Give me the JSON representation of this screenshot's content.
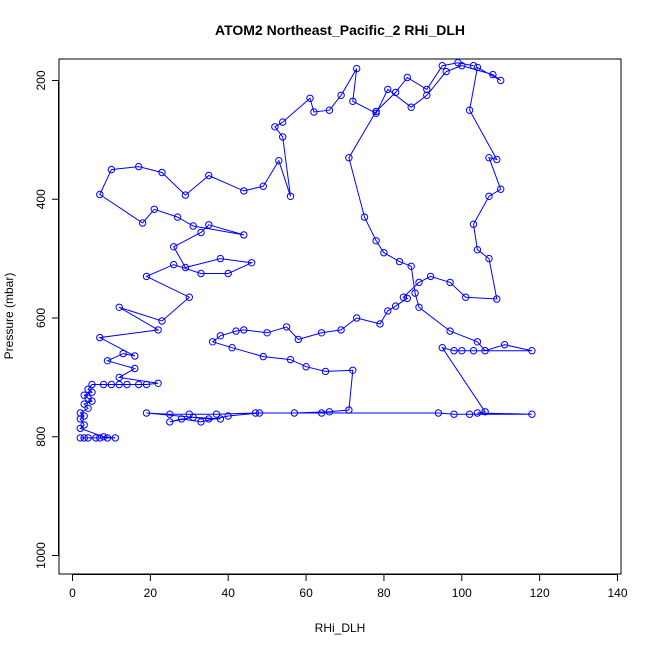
{
  "chart_data": {
    "type": "line",
    "title": "ATOM2 Northeast_Pacific_2 RHi_DLH",
    "xlabel": "RHi_DLH",
    "ylabel": "Pressure (mbar)",
    "xlim": [
      0,
      140
    ],
    "ylim": [
      1000,
      200
    ],
    "y_inverted": true,
    "x_ticks": [
      0,
      20,
      40,
      60,
      80,
      100,
      120,
      140
    ],
    "y_ticks": [
      200,
      400,
      600,
      800,
      1000
    ],
    "marker": "open-circle",
    "color": "#0000ff",
    "grid": false,
    "series": [
      {
        "points": [
          [
            2,
            802
          ],
          [
            3,
            802
          ],
          [
            4,
            802
          ],
          [
            6,
            802
          ],
          [
            7,
            802
          ],
          [
            9,
            802
          ],
          [
            11,
            802
          ],
          [
            8,
            800
          ],
          [
            2,
            786
          ],
          [
            3,
            780
          ],
          [
            2,
            770
          ],
          [
            3,
            765
          ],
          [
            2,
            760
          ],
          [
            4,
            752
          ],
          [
            3,
            745
          ],
          [
            5,
            740
          ],
          [
            4,
            735
          ],
          [
            3,
            730
          ],
          [
            5,
            725
          ],
          [
            4,
            720
          ],
          [
            5,
            712
          ],
          [
            8,
            712
          ],
          [
            10,
            712
          ],
          [
            12,
            712
          ],
          [
            14,
            712
          ],
          [
            17,
            712
          ],
          [
            19,
            712
          ],
          [
            22,
            710
          ],
          [
            12,
            700
          ],
          [
            16,
            685
          ],
          [
            9,
            672
          ],
          [
            13,
            660
          ],
          [
            16,
            664
          ],
          [
            7,
            633
          ],
          [
            22,
            620
          ],
          [
            12,
            582
          ],
          [
            23,
            605
          ],
          [
            30,
            565
          ],
          [
            19,
            530
          ],
          [
            26,
            510
          ],
          [
            33,
            525
          ],
          [
            40,
            525
          ],
          [
            46,
            507
          ],
          [
            38,
            500
          ],
          [
            29,
            515
          ],
          [
            26,
            480
          ],
          [
            33,
            456
          ],
          [
            35,
            443
          ],
          [
            44,
            460
          ],
          [
            31,
            445
          ],
          [
            27,
            430
          ],
          [
            21,
            417
          ],
          [
            18,
            440
          ],
          [
            7,
            392
          ],
          [
            10,
            350
          ],
          [
            17,
            345
          ],
          [
            23,
            355
          ],
          [
            29,
            393
          ],
          [
            35,
            360
          ],
          [
            44,
            386
          ],
          [
            49,
            378
          ],
          [
            53,
            335
          ],
          [
            56,
            395
          ],
          [
            54,
            295
          ],
          [
            52,
            278
          ],
          [
            54,
            270
          ],
          [
            61,
            230
          ],
          [
            62,
            253
          ],
          [
            66,
            250
          ],
          [
            69,
            225
          ],
          [
            73,
            180
          ],
          [
            72,
            235
          ],
          [
            78,
            255
          ],
          [
            81,
            215
          ],
          [
            87,
            245
          ],
          [
            91,
            225
          ],
          [
            96,
            185
          ],
          [
            100,
            175
          ],
          [
            108,
            190
          ],
          [
            110,
            200
          ],
          [
            104,
            178
          ],
          [
            102,
            250
          ],
          [
            109,
            333
          ],
          [
            107,
            330
          ],
          [
            110,
            383
          ],
          [
            107,
            395
          ],
          [
            103,
            442
          ],
          [
            104,
            485
          ],
          [
            107,
            500
          ],
          [
            109,
            568
          ],
          [
            101,
            565
          ],
          [
            97,
            540
          ],
          [
            92,
            530
          ],
          [
            89,
            540
          ],
          [
            85,
            565
          ],
          [
            86,
            567
          ],
          [
            83,
            580
          ],
          [
            81,
            588
          ],
          [
            79,
            610
          ],
          [
            73,
            600
          ],
          [
            69,
            620
          ],
          [
            64,
            625
          ],
          [
            58,
            636
          ],
          [
            55,
            615
          ],
          [
            50,
            625
          ],
          [
            44,
            620
          ],
          [
            42,
            622
          ],
          [
            38,
            630
          ],
          [
            36,
            640
          ],
          [
            41,
            650
          ],
          [
            49,
            665
          ],
          [
            56,
            670
          ],
          [
            60,
            682
          ],
          [
            65,
            690
          ],
          [
            72,
            688
          ],
          [
            71,
            755
          ],
          [
            66,
            758
          ],
          [
            57,
            760
          ],
          [
            47,
            760
          ],
          [
            37,
            762
          ],
          [
            30,
            762
          ],
          [
            25,
            762
          ],
          [
            19,
            760
          ],
          [
            35,
            770
          ],
          [
            38,
            770
          ],
          [
            31,
            767
          ],
          [
            25,
            775
          ],
          [
            28,
            770
          ],
          [
            33,
            775
          ],
          [
            40,
            765
          ],
          [
            48,
            760
          ],
          [
            64,
            760
          ],
          [
            94,
            760
          ],
          [
            98,
            762
          ],
          [
            102,
            762
          ],
          [
            118,
            762
          ],
          [
            104,
            760
          ],
          [
            106,
            758
          ],
          [
            95,
            650
          ],
          [
            98,
            655
          ],
          [
            100,
            655
          ],
          [
            103,
            655
          ],
          [
            118,
            655
          ],
          [
            111,
            645
          ],
          [
            106,
            655
          ],
          [
            104,
            640
          ],
          [
            97,
            622
          ],
          [
            89,
            582
          ],
          [
            88,
            558
          ],
          [
            87,
            513
          ],
          [
            84,
            505
          ],
          [
            80,
            490
          ],
          [
            78,
            470
          ],
          [
            75,
            430
          ],
          [
            71,
            330
          ],
          [
            78,
            252
          ],
          [
            83,
            220
          ],
          [
            86,
            195
          ],
          [
            91,
            215
          ],
          [
            95,
            175
          ],
          [
            99,
            170
          ],
          [
            103,
            175
          ]
        ]
      }
    ]
  }
}
